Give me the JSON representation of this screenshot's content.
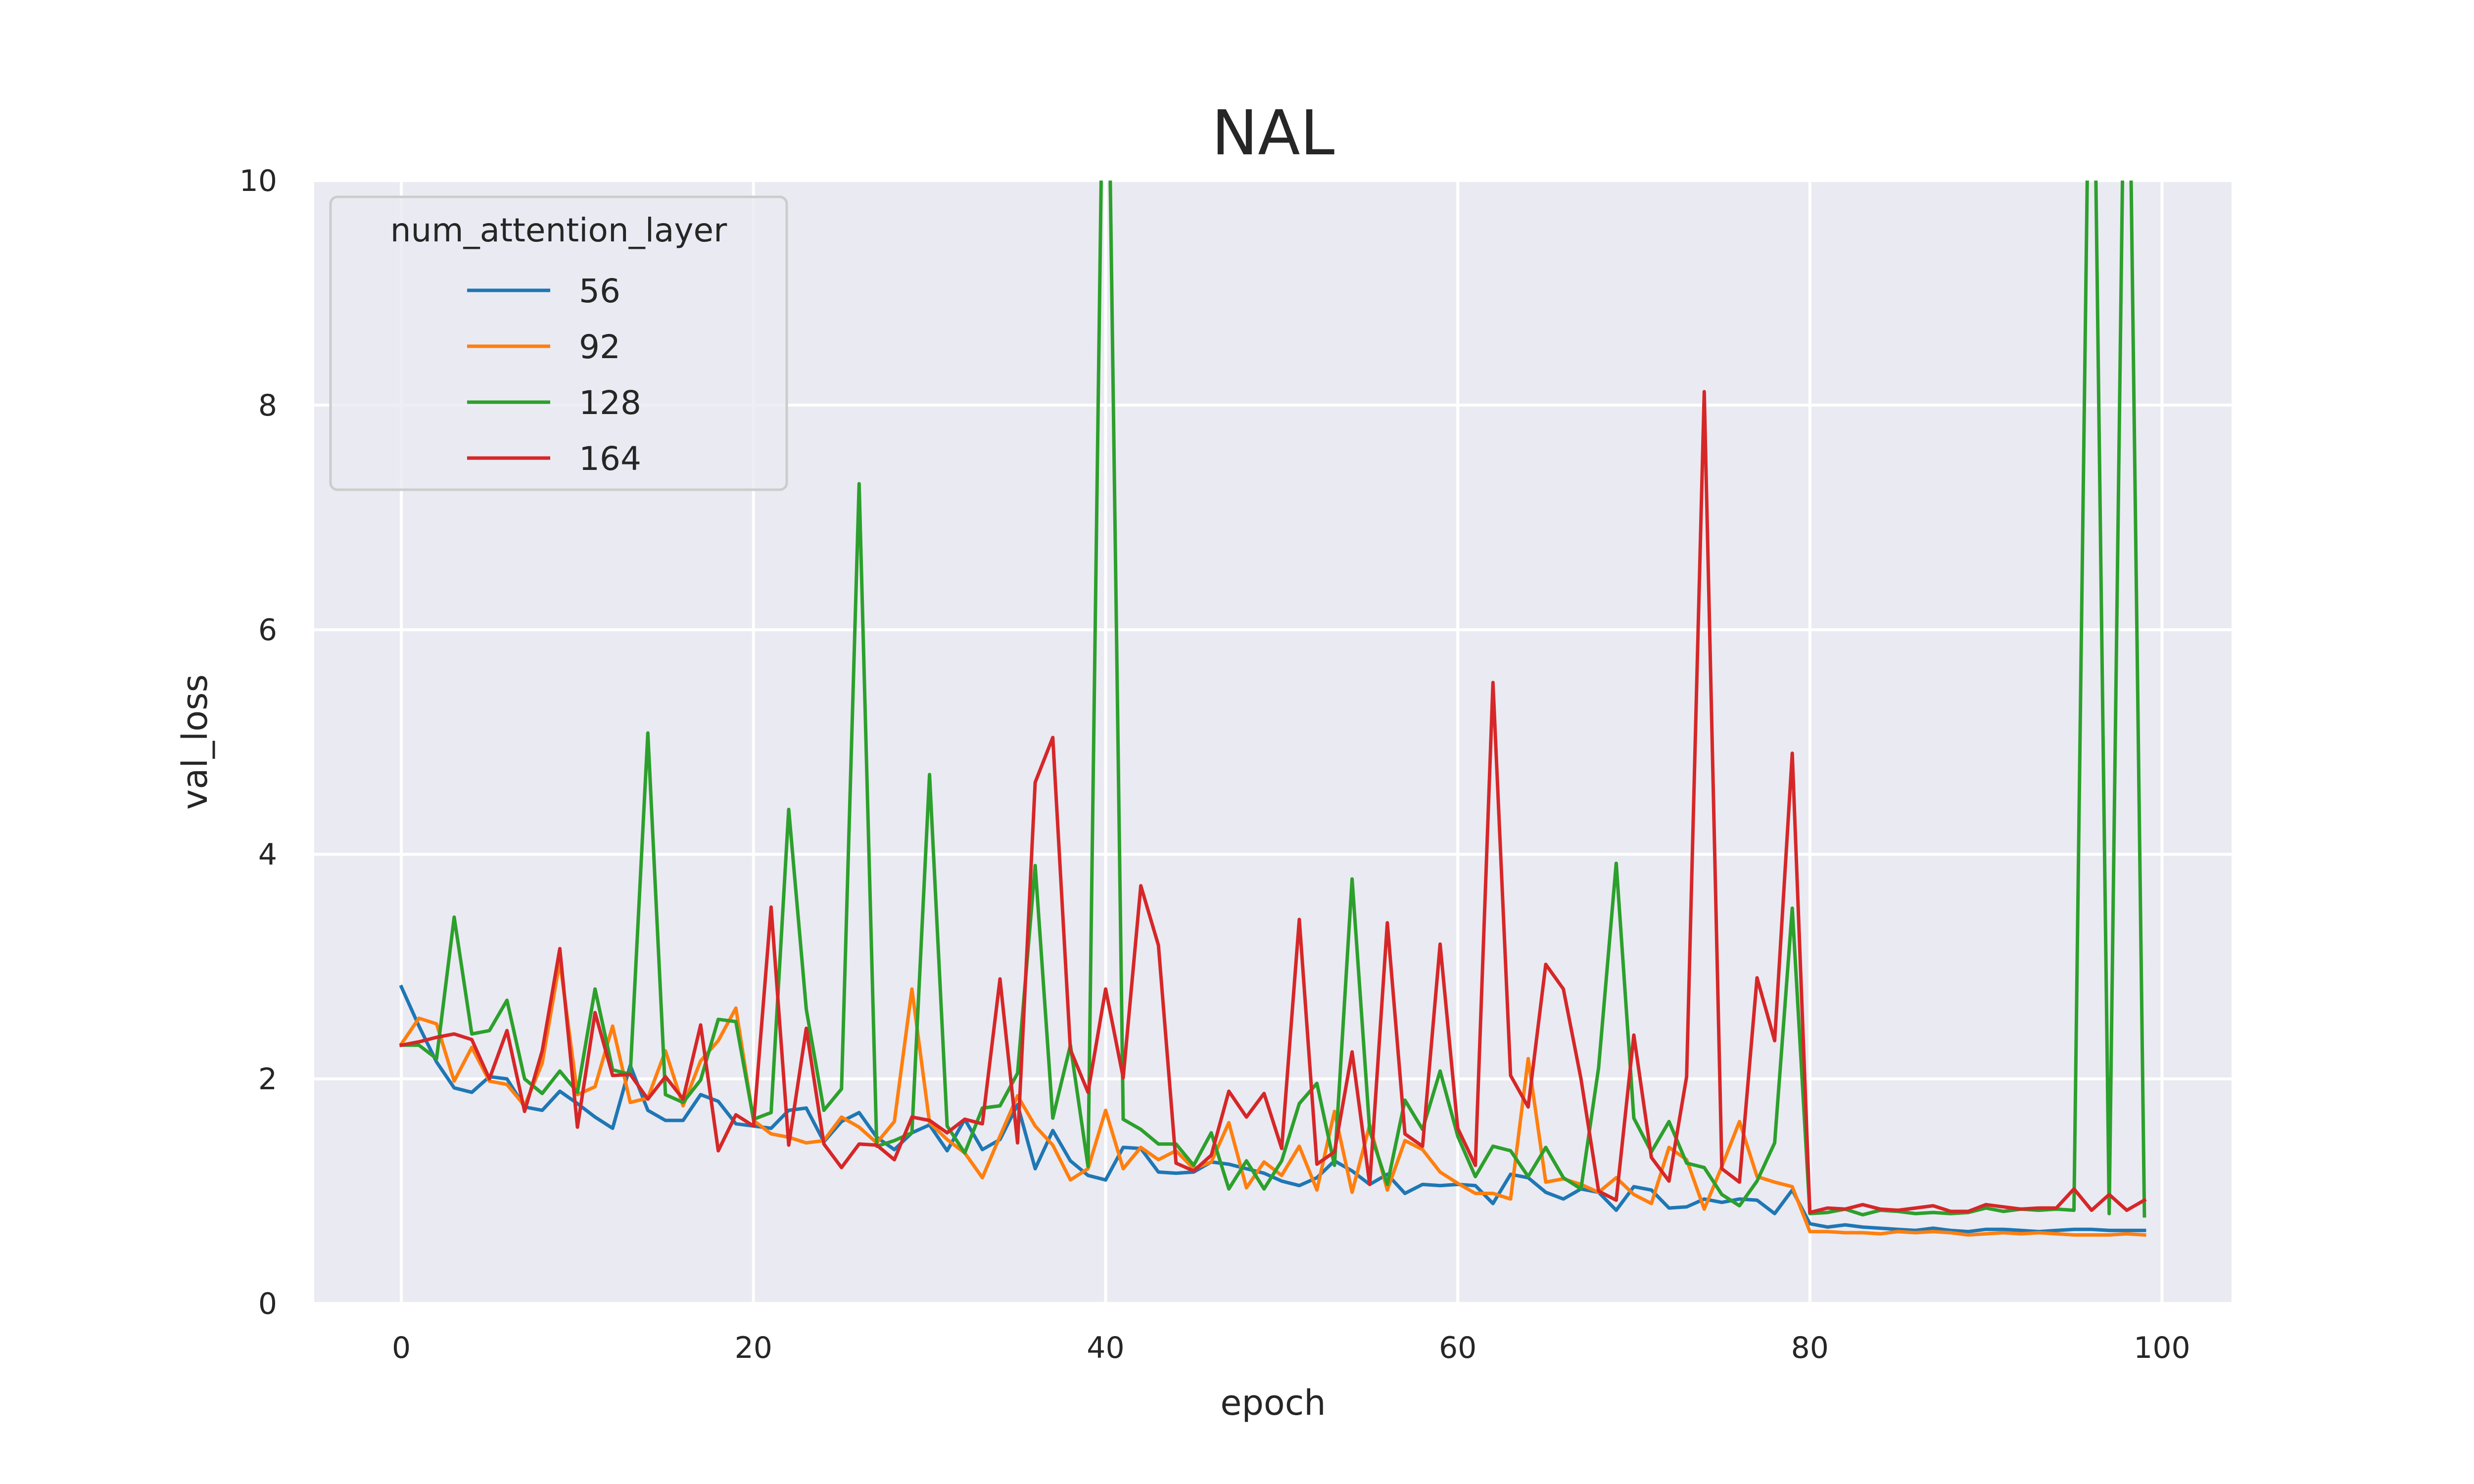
{
  "chart_data": {
    "type": "line",
    "title": "NAL",
    "xlabel": "epoch",
    "ylabel": "val_loss",
    "xlim": [
      -4.95,
      103.95
    ],
    "ylim": [
      0,
      10
    ],
    "xticks": [
      0,
      20,
      40,
      60,
      80,
      100
    ],
    "yticks": [
      0,
      2,
      4,
      6,
      8,
      10
    ],
    "xtick_labels": [
      "0",
      "20",
      "40",
      "60",
      "80",
      "100"
    ],
    "ytick_labels": [
      "0",
      "2",
      "4",
      "6",
      "8",
      "10"
    ],
    "grid": true,
    "legend": {
      "title": "num_attention_layer",
      "placement": "top-left"
    },
    "x": [
      0,
      1,
      2,
      3,
      4,
      5,
      6,
      7,
      8,
      9,
      10,
      11,
      12,
      13,
      14,
      15,
      16,
      17,
      18,
      19,
      20,
      21,
      22,
      23,
      24,
      25,
      26,
      27,
      28,
      29,
      30,
      31,
      32,
      33,
      34,
      35,
      36,
      37,
      38,
      39,
      40,
      41,
      42,
      43,
      44,
      45,
      46,
      47,
      48,
      49,
      50,
      51,
      52,
      53,
      54,
      55,
      56,
      57,
      58,
      59,
      60,
      61,
      62,
      63,
      64,
      65,
      66,
      67,
      68,
      69,
      70,
      71,
      72,
      73,
      74,
      75,
      76,
      77,
      78,
      79,
      80,
      81,
      82,
      83,
      84,
      85,
      86,
      87,
      88,
      89,
      90,
      91,
      92,
      93,
      94,
      95,
      96,
      97,
      98,
      99
    ],
    "series": [
      {
        "name": "56",
        "color": "#1f77b4",
        "values": [
          2.82,
          2.47,
          2.15,
          1.92,
          1.88,
          2.02,
          2.0,
          1.75,
          1.72,
          1.89,
          1.78,
          1.66,
          1.56,
          2.12,
          1.72,
          1.63,
          1.63,
          1.86,
          1.8,
          1.6,
          1.58,
          1.56,
          1.72,
          1.74,
          1.44,
          1.62,
          1.7,
          1.48,
          1.37,
          1.52,
          1.59,
          1.36,
          1.64,
          1.37,
          1.46,
          1.77,
          1.2,
          1.54,
          1.27,
          1.14,
          1.1,
          1.39,
          1.38,
          1.17,
          1.16,
          1.17,
          1.26,
          1.24,
          1.2,
          1.16,
          1.09,
          1.05,
          1.12,
          1.27,
          1.18,
          1.06,
          1.15,
          0.98,
          1.06,
          1.05,
          1.06,
          1.05,
          0.89,
          1.15,
          1.12,
          0.99,
          0.93,
          1.02,
          0.99,
          0.83,
          1.04,
          1.01,
          0.85,
          0.86,
          0.93,
          0.9,
          0.93,
          0.92,
          0.8,
          1.01,
          0.71,
          0.68,
          0.7,
          0.68,
          0.67,
          0.66,
          0.65,
          0.67,
          0.65,
          0.64,
          0.66,
          0.66,
          0.65,
          0.64,
          0.65,
          0.66,
          0.66,
          0.65,
          0.65,
          0.65
        ]
      },
      {
        "name": "92",
        "color": "#ff7f0e",
        "values": [
          2.31,
          2.54,
          2.49,
          1.98,
          2.28,
          1.98,
          1.95,
          1.76,
          2.14,
          3.05,
          1.86,
          1.93,
          2.47,
          1.79,
          1.83,
          2.25,
          1.76,
          2.16,
          2.34,
          2.63,
          1.63,
          1.51,
          1.48,
          1.43,
          1.45,
          1.66,
          1.57,
          1.43,
          1.62,
          2.8,
          1.61,
          1.46,
          1.34,
          1.12,
          1.49,
          1.85,
          1.58,
          1.41,
          1.1,
          1.2,
          1.72,
          1.2,
          1.39,
          1.28,
          1.36,
          1.2,
          1.26,
          1.61,
          1.03,
          1.26,
          1.14,
          1.4,
          1.01,
          1.71,
          0.99,
          1.59,
          1.01,
          1.45,
          1.37,
          1.17,
          1.07,
          0.98,
          0.98,
          0.93,
          2.18,
          1.08,
          1.11,
          1.06,
          0.99,
          1.12,
          0.97,
          0.89,
          1.39,
          1.28,
          0.84,
          1.22,
          1.62,
          1.13,
          1.08,
          1.04,
          0.64,
          0.64,
          0.63,
          0.63,
          0.62,
          0.64,
          0.63,
          0.64,
          0.63,
          0.61,
          0.62,
          0.63,
          0.62,
          0.63,
          0.62,
          0.61,
          0.61,
          0.61,
          0.62,
          0.61
        ]
      },
      {
        "name": "128",
        "color": "#2ca02c",
        "values": [
          2.3,
          2.3,
          2.18,
          3.44,
          2.4,
          2.43,
          2.7,
          2.0,
          1.87,
          2.07,
          1.88,
          2.8,
          2.08,
          2.04,
          5.08,
          1.86,
          1.79,
          1.99,
          2.53,
          2.51,
          1.64,
          1.7,
          4.4,
          2.62,
          1.72,
          1.91,
          7.3,
          1.4,
          1.45,
          1.52,
          4.71,
          1.58,
          1.34,
          1.74,
          1.76,
          2.05,
          3.9,
          1.65,
          2.3,
          1.22,
          13.0,
          1.64,
          1.55,
          1.42,
          1.42,
          1.23,
          1.52,
          1.02,
          1.27,
          1.02,
          1.27,
          1.78,
          1.96,
          1.23,
          3.78,
          1.54,
          1.06,
          1.81,
          1.55,
          2.07,
          1.49,
          1.13,
          1.4,
          1.36,
          1.13,
          1.39,
          1.12,
          1.02,
          2.1,
          3.92,
          1.65,
          1.35,
          1.62,
          1.25,
          1.21,
          0.97,
          0.87,
          1.09,
          1.43,
          3.52,
          0.8,
          0.81,
          0.84,
          0.79,
          0.83,
          0.82,
          0.8,
          0.81,
          0.8,
          0.81,
          0.85,
          0.82,
          0.84,
          0.83,
          0.84,
          0.83,
          13.0,
          0.8,
          13.0,
          0.78
        ]
      },
      {
        "name": "164",
        "color": "#d62728",
        "values": [
          2.3,
          2.33,
          2.37,
          2.4,
          2.35,
          2.0,
          2.43,
          1.71,
          2.25,
          3.16,
          1.57,
          2.59,
          2.03,
          2.04,
          1.82,
          2.02,
          1.82,
          2.48,
          1.36,
          1.68,
          1.58,
          3.53,
          1.41,
          2.45,
          1.42,
          1.21,
          1.42,
          1.41,
          1.28,
          1.66,
          1.63,
          1.52,
          1.64,
          1.6,
          2.89,
          1.43,
          4.64,
          5.04,
          2.26,
          1.88,
          2.8,
          2.01,
          3.72,
          3.19,
          1.25,
          1.18,
          1.32,
          1.89,
          1.66,
          1.87,
          1.38,
          3.42,
          1.24,
          1.35,
          2.24,
          1.06,
          3.39,
          1.51,
          1.4,
          3.2,
          1.56,
          1.23,
          5.53,
          2.03,
          1.75,
          3.02,
          2.8,
          2.0,
          1.0,
          0.92,
          2.39,
          1.3,
          1.09,
          2.02,
          8.12,
          1.2,
          1.08,
          2.9,
          2.34,
          4.9,
          0.81,
          0.85,
          0.84,
          0.88,
          0.84,
          0.83,
          0.85,
          0.87,
          0.82,
          0.82,
          0.88,
          0.86,
          0.84,
          0.85,
          0.85,
          1.02,
          0.83,
          0.97,
          0.83,
          0.92
        ]
      }
    ]
  }
}
